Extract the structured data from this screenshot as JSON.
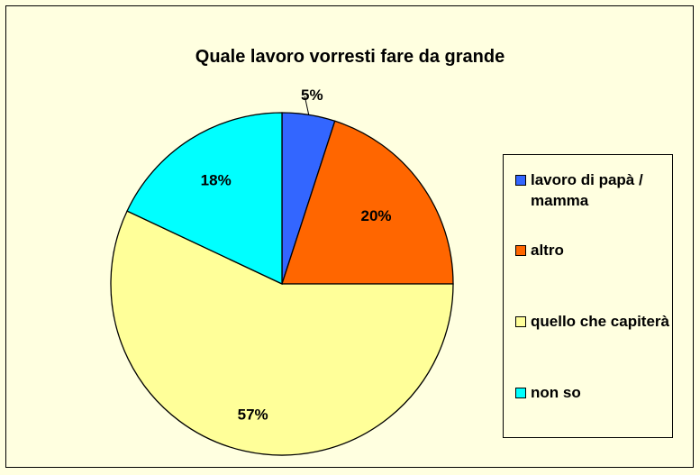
{
  "chart_data": {
    "type": "pie",
    "title": "Quale lavoro vorresti fare da grande",
    "categories": [
      "lavoro di papà / mamma",
      "altro",
      "quello che capiterà",
      "non so"
    ],
    "values": [
      5,
      20,
      57,
      18
    ],
    "labels": [
      "5%",
      "20%",
      "57%",
      "18%"
    ],
    "colors": [
      "#3366ff",
      "#ff6600",
      "#ffff99",
      "#00ffff"
    ],
    "start_angle": "12 o'clock",
    "direction": "clockwise",
    "legend": "right"
  },
  "background_color": "#ffffe0"
}
